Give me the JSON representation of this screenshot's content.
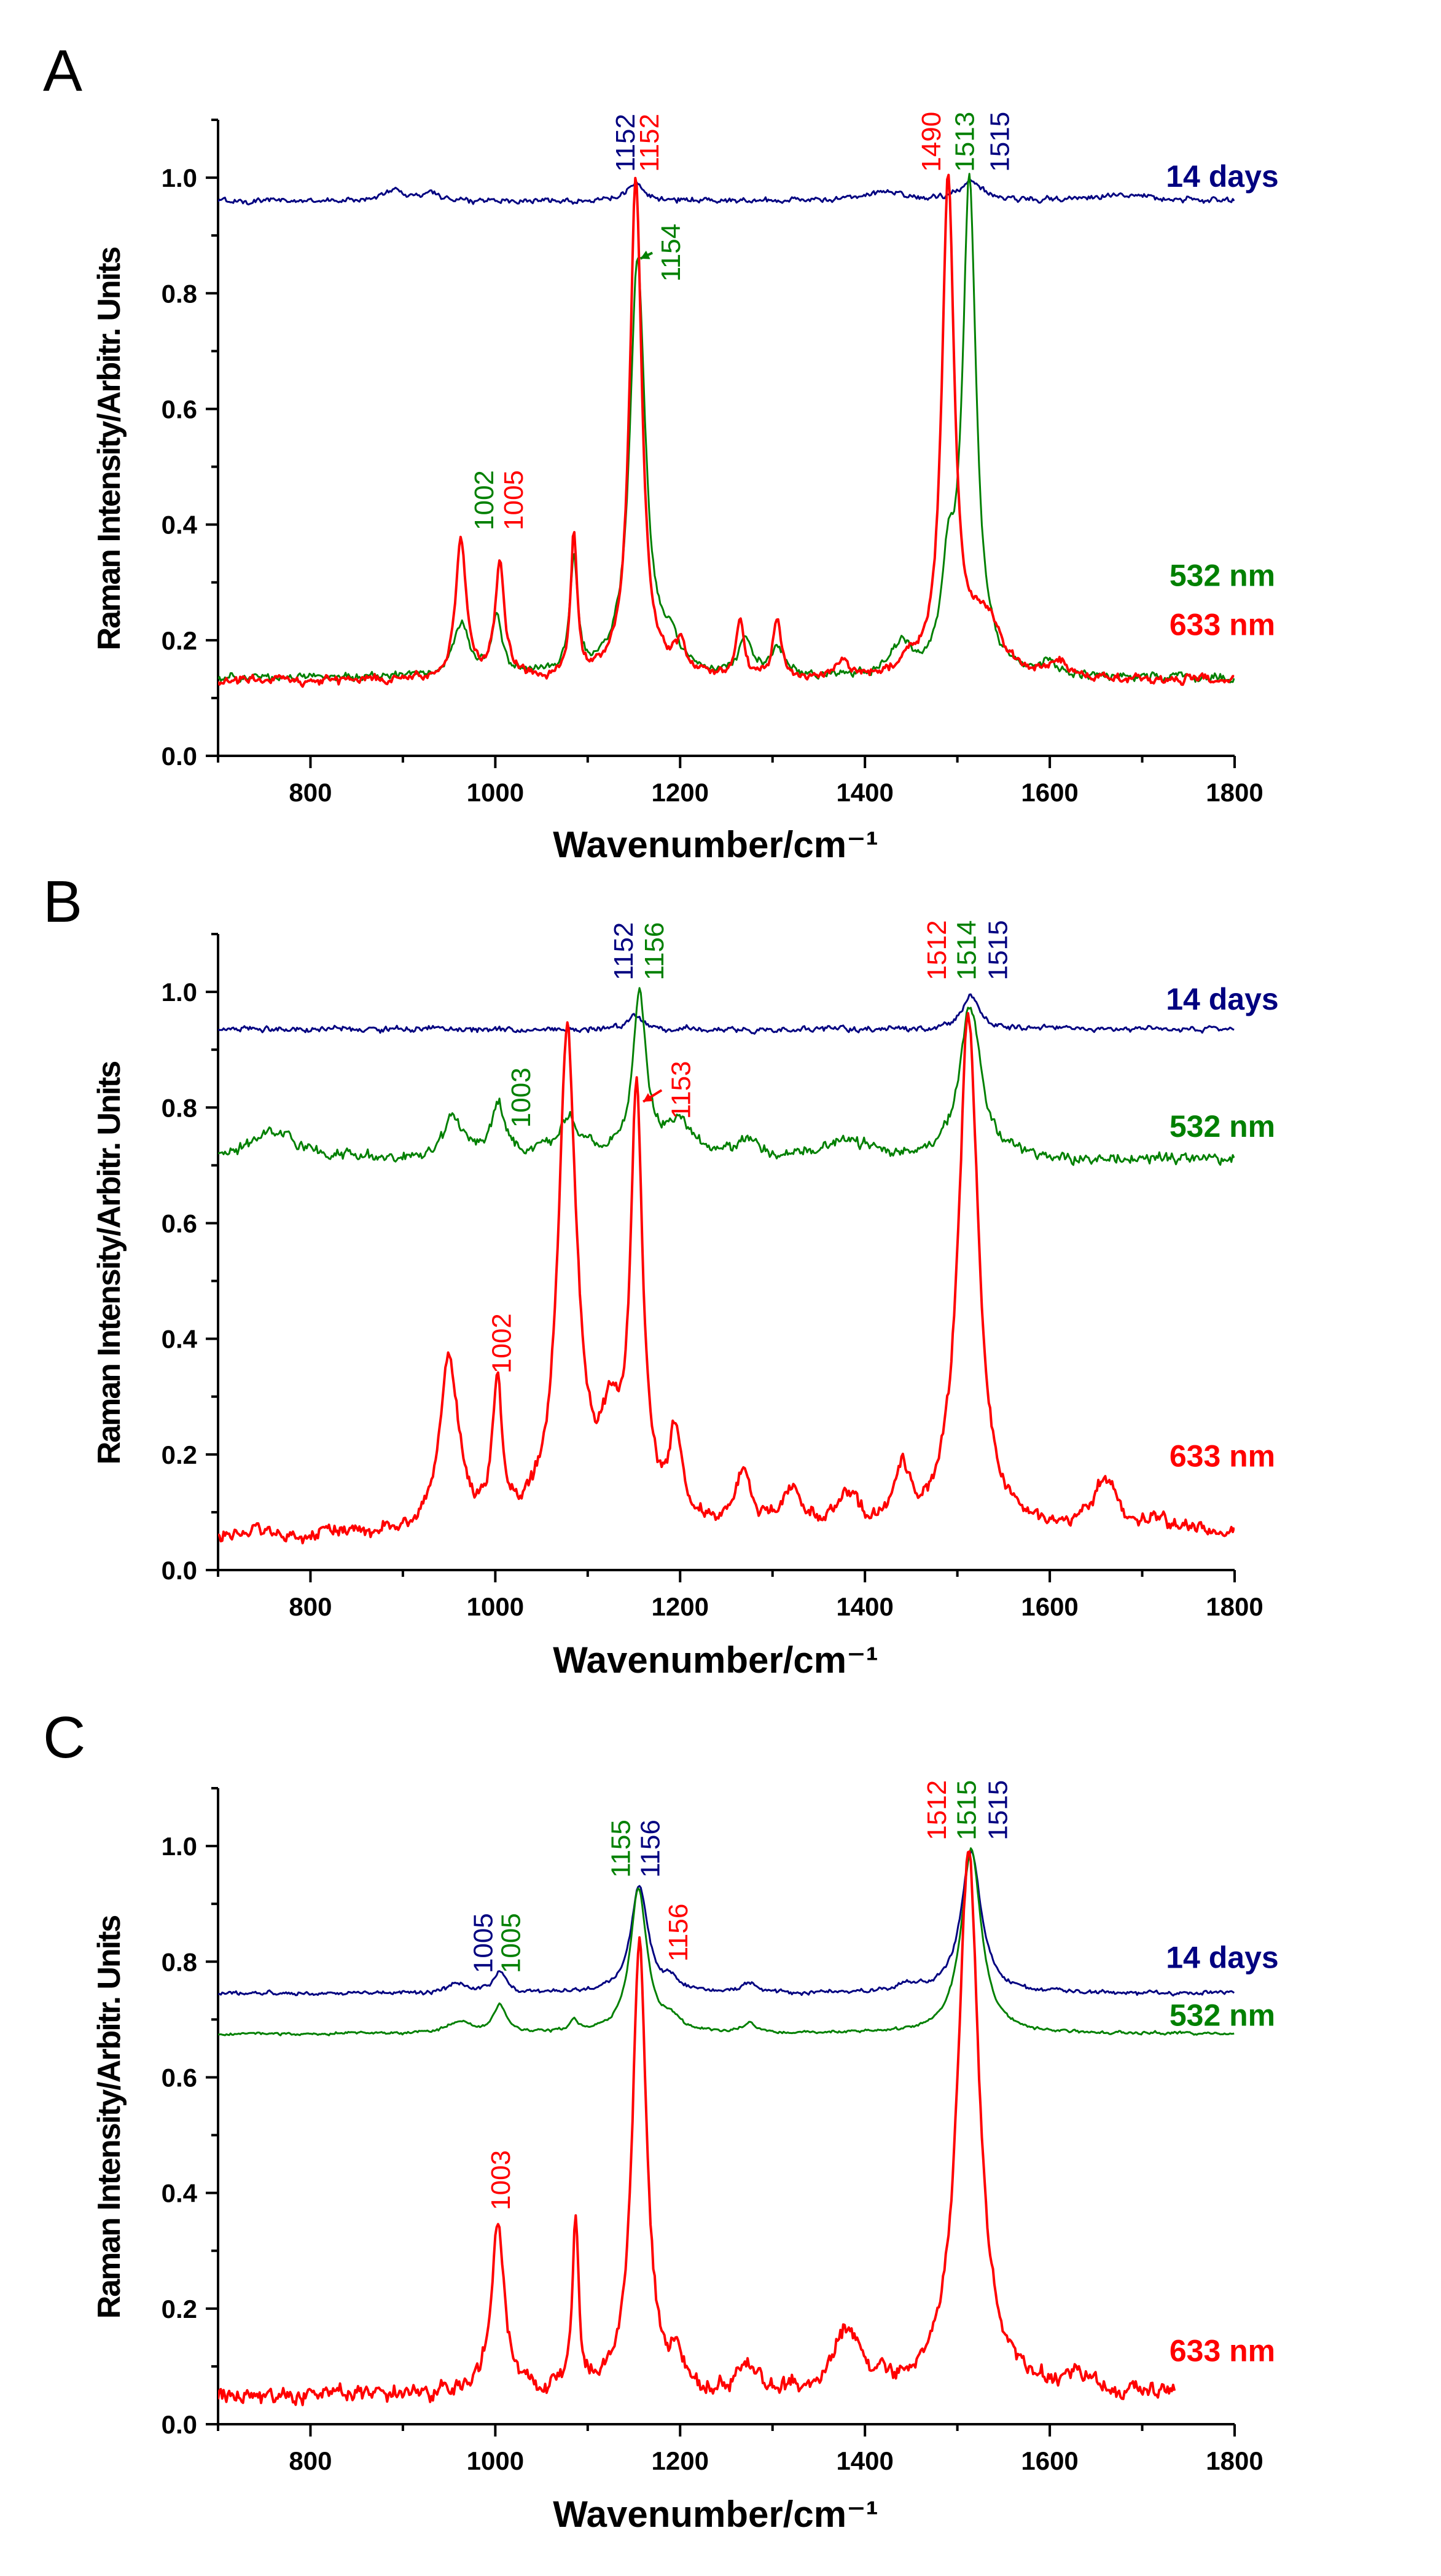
{
  "colors": {
    "blue": "#000080",
    "green": "#008000",
    "red": "#ff0000",
    "axis": "#000000"
  },
  "chart_data": [
    {
      "type": "line",
      "panel_label": "A",
      "xlabel": "Wavenumber/cm⁻¹",
      "ylabel": "Raman Intensity/Arbitr. Units",
      "xlim": [
        700,
        1800
      ],
      "ylim": [
        0,
        1.1
      ],
      "x_ticks": [
        "800",
        "1000",
        "1200",
        "1400",
        "1600",
        "1800"
      ],
      "y_ticks": [
        "0.0",
        "0.2",
        "0.4",
        "0.6",
        "0.8",
        "1.0"
      ],
      "series": [
        {
          "name": "14 days",
          "color_key": "blue",
          "baseline": 0.96,
          "noise": 0.004,
          "peaks": [
            [
              1152,
              0.03,
              10
            ],
            [
              1515,
              0.035,
              14
            ],
            [
              890,
              0.02,
              12
            ],
            [
              930,
              0.015,
              10
            ],
            [
              1420,
              0.015,
              25
            ],
            [
              1680,
              0.012,
              30
            ]
          ]
        },
        {
          "name": "532 nm",
          "color_key": "green",
          "baseline": 0.135,
          "noise": 0.006,
          "peaks": [
            [
              963,
              0.09,
              10
            ],
            [
              1002,
              0.1,
              7
            ],
            [
              1085,
              0.2,
              5
            ],
            [
              1154,
              0.72,
              10
            ],
            [
              1190,
              0.05,
              10
            ],
            [
              1270,
              0.06,
              8
            ],
            [
              1305,
              0.05,
              8
            ],
            [
              1440,
              0.05,
              12
            ],
            [
              1490,
              0.15,
              8
            ],
            [
              1513,
              0.85,
              9
            ],
            [
              1600,
              0.02,
              10
            ]
          ]
        },
        {
          "name": "633 nm",
          "color_key": "red",
          "baseline": 0.13,
          "noise": 0.006,
          "peaks": [
            [
              963,
              0.24,
              7
            ],
            [
              1005,
              0.2,
              6
            ],
            [
              1085,
              0.25,
              4
            ],
            [
              1152,
              0.86,
              8
            ],
            [
              1200,
              0.05,
              8
            ],
            [
              1265,
              0.1,
              5
            ],
            [
              1305,
              0.1,
              5
            ],
            [
              1375,
              0.03,
              8
            ],
            [
              1450,
              0.02,
              15
            ],
            [
              1490,
              0.86,
              8
            ],
            [
              1530,
              0.1,
              20
            ],
            [
              1610,
              0.03,
              8
            ]
          ]
        }
      ],
      "legend_labels": [
        {
          "text": "14 days",
          "color_key": "blue",
          "y": 1.0
        },
        {
          "text": "532 nm",
          "color_key": "green",
          "y": 0.31
        },
        {
          "text": "633 nm",
          "color_key": "red",
          "y": 0.225
        }
      ],
      "peak_labels": [
        {
          "text": "1152",
          "color_key": "blue",
          "x": 1143,
          "y": 1.01
        },
        {
          "text": "1152",
          "color_key": "red",
          "x": 1169,
          "y": 1.01
        },
        {
          "text": "1154",
          "color_key": "green",
          "x": 1192,
          "y": 0.82
        },
        {
          "text": "1490",
          "color_key": "red",
          "x": 1474,
          "y": 1.01
        },
        {
          "text": "1513",
          "color_key": "green",
          "x": 1510,
          "y": 1.01
        },
        {
          "text": "1515",
          "color_key": "blue",
          "x": 1548,
          "y": 1.01
        },
        {
          "text": "1002",
          "color_key": "green",
          "x": 990,
          "y": 0.39
        },
        {
          "text": "1005",
          "color_key": "red",
          "x": 1022,
          "y": 0.39
        }
      ],
      "arrows": [
        {
          "color_key": "green",
          "from": [
            1170,
            0.87
          ],
          "to": [
            1157,
            0.86
          ]
        }
      ]
    },
    {
      "type": "line",
      "panel_label": "B",
      "xlabel": "Wavenumber/cm⁻¹",
      "ylabel": "Raman Intensity/Arbitr. Units",
      "xlim": [
        700,
        1800
      ],
      "ylim": [
        0,
        1.1
      ],
      "x_ticks": [
        "800",
        "1000",
        "1200",
        "1400",
        "1600",
        "1800"
      ],
      "y_ticks": [
        "0.0",
        "0.2",
        "0.4",
        "0.6",
        "0.8",
        "1.0"
      ],
      "series": [
        {
          "name": "14 days",
          "color_key": "blue",
          "baseline": 0.935,
          "noise": 0.004,
          "peaks": [
            [
              1152,
              0.025,
              10
            ],
            [
              1515,
              0.055,
              12
            ]
          ]
        },
        {
          "name": "532 nm",
          "color_key": "green",
          "baseline": 0.71,
          "noise": 0.008,
          "peaks": [
            [
              760,
              0.05,
              30
            ],
            [
              955,
              0.07,
              12
            ],
            [
              1003,
              0.09,
              9
            ],
            [
              1080,
              0.06,
              15
            ],
            [
              1156,
              0.28,
              9
            ],
            [
              1200,
              0.06,
              15
            ],
            [
              1270,
              0.03,
              15
            ],
            [
              1380,
              0.03,
              30
            ],
            [
              1514,
              0.26,
              14
            ]
          ]
        },
        {
          "name": "633 nm",
          "color_key": "red",
          "baseline": 0.06,
          "noise": 0.01,
          "peaks": [
            [
              950,
              0.3,
              12
            ],
            [
              1002,
              0.24,
              6
            ],
            [
              1078,
              0.85,
              12
            ],
            [
              1125,
              0.15,
              15
            ],
            [
              1153,
              0.72,
              8
            ],
            [
              1195,
              0.16,
              8
            ],
            [
              1268,
              0.1,
              10
            ],
            [
              1320,
              0.07,
              12
            ],
            [
              1380,
              0.06,
              15
            ],
            [
              1440,
              0.1,
              10
            ],
            [
              1512,
              0.9,
              13
            ],
            [
              1660,
              0.09,
              15
            ],
            [
              1720,
              0.02,
              15
            ]
          ]
        }
      ],
      "legend_labels": [
        {
          "text": "14 days",
          "color_key": "blue",
          "y": 0.985
        },
        {
          "text": "532 nm",
          "color_key": "green",
          "y": 0.765
        },
        {
          "text": "633 nm",
          "color_key": "red",
          "y": 0.195
        }
      ],
      "peak_labels": [
        {
          "text": "1152",
          "color_key": "blue",
          "x": 1141,
          "y": 1.02
        },
        {
          "text": "1156",
          "color_key": "green",
          "x": 1174,
          "y": 1.02
        },
        {
          "text": "1153",
          "color_key": "red",
          "x": 1203,
          "y": 0.78
        },
        {
          "text": "1512",
          "color_key": "red",
          "x": 1480,
          "y": 1.02
        },
        {
          "text": "1514",
          "color_key": "green",
          "x": 1512,
          "y": 1.02
        },
        {
          "text": "1515",
          "color_key": "blue",
          "x": 1546,
          "y": 1.02
        },
        {
          "text": "1003",
          "color_key": "green",
          "x": 1030,
          "y": 0.765
        },
        {
          "text": "1002",
          "color_key": "red",
          "x": 1009,
          "y": 0.34
        }
      ],
      "arrows": [
        {
          "color_key": "red",
          "from": [
            1180,
            0.83
          ],
          "to": [
            1160,
            0.81
          ]
        }
      ]
    },
    {
      "type": "line",
      "panel_label": "C",
      "xlabel": "Wavenumber/cm⁻¹",
      "ylabel": "Raman Intensity/Arbitr. Units",
      "xlim": [
        700,
        1800
      ],
      "ylim": [
        0,
        1.1
      ],
      "x_ticks": [
        "800",
        "1000",
        "1200",
        "1400",
        "1600",
        "1800"
      ],
      "y_ticks": [
        "0.0",
        "0.2",
        "0.4",
        "0.6",
        "0.8",
        "1.0"
      ],
      "series": [
        {
          "name": "14 days",
          "color_key": "blue",
          "baseline": 0.745,
          "noise": 0.003,
          "peaks": [
            [
              960,
              0.015,
              15
            ],
            [
              1005,
              0.035,
              8
            ],
            [
              1156,
              0.185,
              11
            ],
            [
              1190,
              0.02,
              10
            ],
            [
              1275,
              0.015,
              10
            ],
            [
              1445,
              0.01,
              20
            ],
            [
              1515,
              0.245,
              13
            ]
          ]
        },
        {
          "name": "532 nm",
          "color_key": "green",
          "baseline": 0.675,
          "noise": 0.002,
          "peaks": [
            [
              960,
              0.02,
              15
            ],
            [
              1005,
              0.05,
              8
            ],
            [
              1085,
              0.02,
              5
            ],
            [
              1155,
              0.25,
              11
            ],
            [
              1190,
              0.02,
              10
            ],
            [
              1275,
              0.015,
              10
            ],
            [
              1515,
              0.32,
              13
            ]
          ]
        },
        {
          "name": "633 nm",
          "color_key": "red",
          "baseline": 0.05,
          "noise": 0.012,
          "peaks": [
            [
              1003,
              0.28,
              9
            ],
            [
              1087,
              0.29,
              4
            ],
            [
              1156,
              0.8,
              9
            ],
            [
              1195,
              0.05,
              8
            ],
            [
              1275,
              0.04,
              10
            ],
            [
              1380,
              0.1,
              20
            ],
            [
              1512,
              0.94,
              14
            ],
            [
              1630,
              0.03,
              15
            ]
          ]
        }
      ],
      "series_xmax": {
        "633 nm": 1735
      },
      "legend_labels": [
        {
          "text": "14 days",
          "color_key": "blue",
          "y": 0.805
        },
        {
          "text": "532 nm",
          "color_key": "green",
          "y": 0.705
        },
        {
          "text": "633 nm",
          "color_key": "red",
          "y": 0.125
        }
      ],
      "peak_labels": [
        {
          "text": "1005",
          "color_key": "blue",
          "x": 989,
          "y": 0.78
        },
        {
          "text": "1005",
          "color_key": "green",
          "x": 1019,
          "y": 0.78
        },
        {
          "text": "1155",
          "color_key": "green",
          "x": 1138,
          "y": 0.945
        },
        {
          "text": "1156",
          "color_key": "blue",
          "x": 1170,
          "y": 0.945
        },
        {
          "text": "1156",
          "color_key": "red",
          "x": 1200,
          "y": 0.8
        },
        {
          "text": "1512",
          "color_key": "red",
          "x": 1480,
          "y": 1.01
        },
        {
          "text": "1515",
          "color_key": "green",
          "x": 1512,
          "y": 1.01
        },
        {
          "text": "1515",
          "color_key": "blue",
          "x": 1546,
          "y": 1.01
        },
        {
          "text": "1003",
          "color_key": "red",
          "x": 1008,
          "y": 0.37
        }
      ],
      "arrows": []
    }
  ]
}
